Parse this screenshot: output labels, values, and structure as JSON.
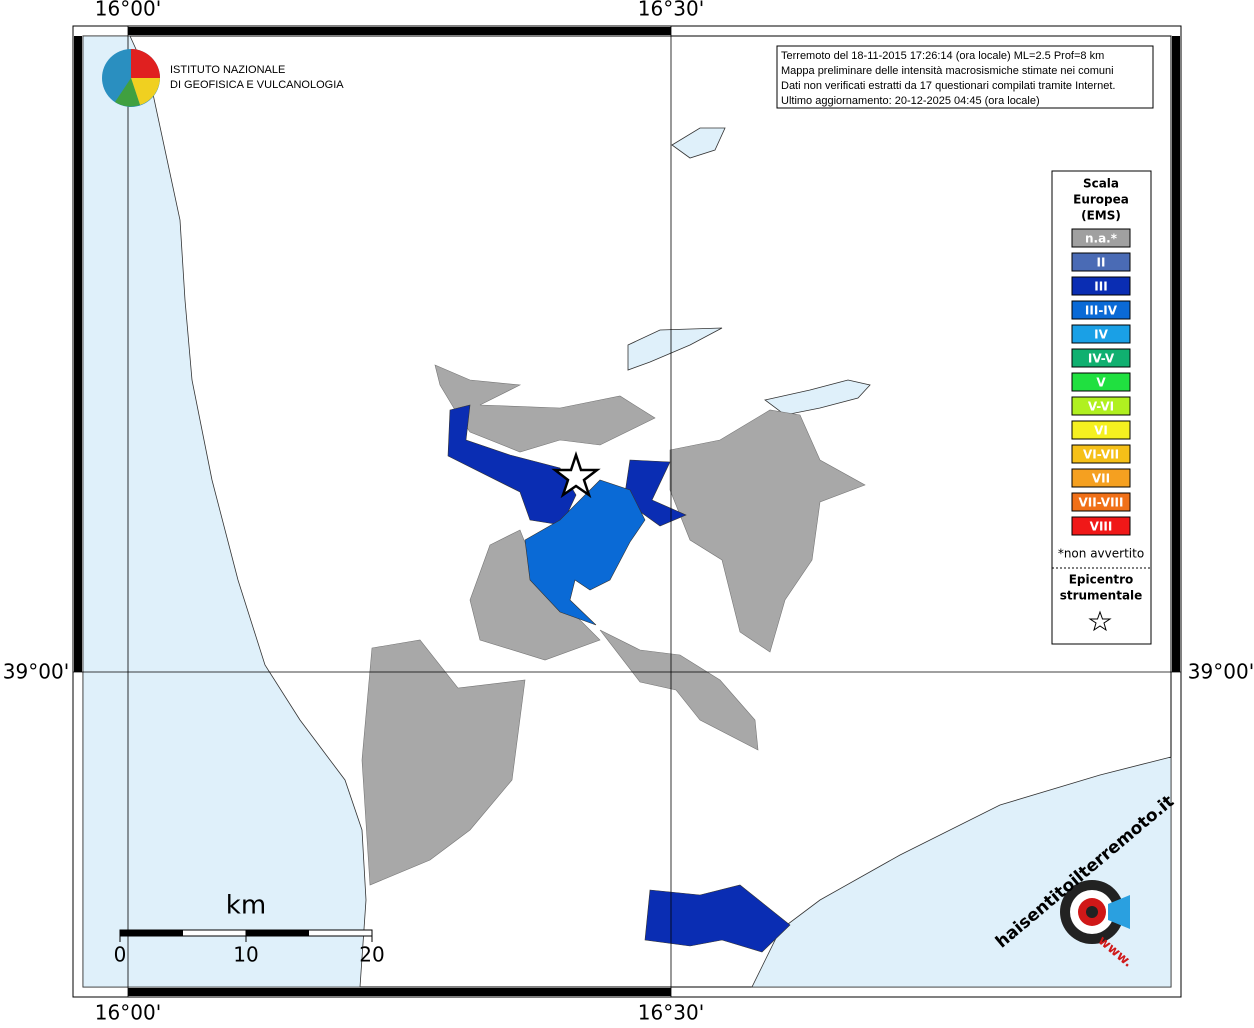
{
  "map": {
    "lon_labels": [
      "16°00'",
      "16°30'"
    ],
    "lat_labels": [
      "39°00'"
    ],
    "institute": [
      "ISTITUTO NAZIONALE",
      "DI GEOFISICA E VULCANOLOGIA"
    ],
    "info": [
      "Terremoto del 18-11-2015 17:26:14 (ora locale) ML=2.5 Prof=8 km",
      "Mappa preliminare delle intensità macrosismiche stimate nei comuni",
      "Dati non verificati estratti da 17 questionari compilati tramite Internet.",
      "Ultimo aggiornamento: 20-12-2025 04:45 (ora locale)"
    ],
    "legend": {
      "title": [
        "Scala",
        "Europea",
        "(EMS)"
      ],
      "items": [
        {
          "label": "n.a.*",
          "color": "#a0a0a0"
        },
        {
          "label": "II",
          "color": "#4a6bb5"
        },
        {
          "label": "III",
          "color": "#0a2db3"
        },
        {
          "label": "III-IV",
          "color": "#0a6ad6"
        },
        {
          "label": "IV",
          "color": "#1aa0e6"
        },
        {
          "label": "IV-V",
          "color": "#10b070"
        },
        {
          "label": "V",
          "color": "#20e040"
        },
        {
          "label": "V-VI",
          "color": "#b0f020"
        },
        {
          "label": "VI",
          "color": "#f5f020"
        },
        {
          "label": "VI-VII",
          "color": "#f5c018"
        },
        {
          "label": "VII",
          "color": "#f5a020"
        },
        {
          "label": "VII-VIII",
          "color": "#f07018"
        },
        {
          "label": "VIII",
          "color": "#f01818"
        }
      ],
      "note": "*non avvertito",
      "epicenter": [
        "Epicentro",
        "strumentale"
      ]
    },
    "scale": {
      "unit": "km",
      "ticks": [
        0,
        10,
        20
      ]
    },
    "badge": {
      "name": "haisentitoilterremoto.it",
      "prefix": "www."
    }
  }
}
